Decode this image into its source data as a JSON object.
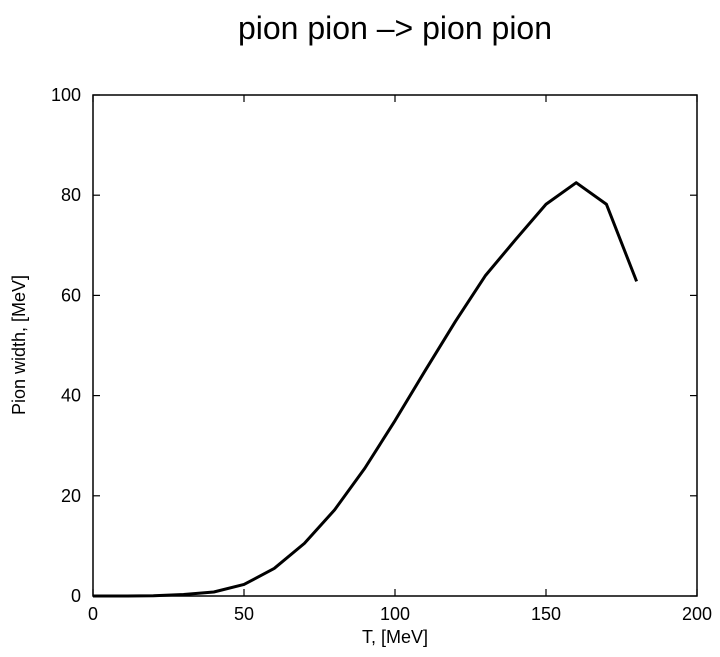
{
  "chart_data": {
    "type": "line",
    "title": "pion pion –> pion pion",
    "xlabel": "T, [MeV]",
    "ylabel": "Pion width, [MeV]",
    "xlim": [
      0,
      200
    ],
    "ylim": [
      0,
      100
    ],
    "xticks": [
      0,
      50,
      100,
      150,
      200
    ],
    "yticks": [
      0,
      20,
      40,
      60,
      80,
      100
    ],
    "grid": false,
    "series": [
      {
        "x": [
          0,
          10,
          20,
          30,
          40,
          50,
          60,
          70,
          80,
          90,
          100,
          110,
          120,
          130,
          140,
          150,
          160,
          170,
          180
        ],
        "y": [
          0.0,
          0.0,
          0.05,
          0.3,
          0.8,
          2.3,
          5.5,
          10.5,
          17.2,
          25.5,
          35.0,
          45.0,
          54.8,
          64.0,
          71.2,
          78.2,
          82.5,
          78.2,
          62.8
        ]
      }
    ]
  }
}
